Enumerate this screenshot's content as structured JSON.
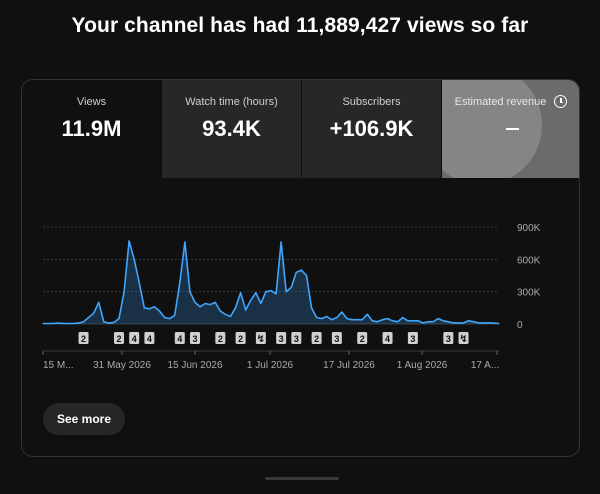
{
  "headline": "Your channel has had 11,889,427 views so far",
  "metrics": [
    {
      "label": "Views",
      "value": "11.9M"
    },
    {
      "label": "Watch time (hours)",
      "value": "93.4K"
    },
    {
      "label": "Subscribers",
      "value": "+106.9K"
    },
    {
      "label": "Estimated revenue",
      "value": ""
    }
  ],
  "see_more_label": "See more",
  "colors": {
    "line": "#3ea6ff",
    "grid": "#3a3a3a",
    "marker": "#d0d0d0"
  },
  "chart_data": {
    "type": "area",
    "series": [
      {
        "name": "Views",
        "values": [
          5000,
          5000,
          5000,
          8000,
          6000,
          5000,
          5000,
          8000,
          20000,
          60000,
          100000,
          200000,
          20000,
          8000,
          15000,
          50000,
          300000,
          770000,
          600000,
          380000,
          150000,
          140000,
          160000,
          120000,
          60000,
          50000,
          80000,
          380000,
          760000,
          300000,
          200000,
          160000,
          190000,
          180000,
          200000,
          120000,
          90000,
          70000,
          150000,
          290000,
          130000,
          220000,
          290000,
          190000,
          300000,
          310000,
          280000,
          760000,
          300000,
          340000,
          480000,
          500000,
          450000,
          150000,
          60000,
          50000,
          70000,
          40000,
          60000,
          110000,
          50000,
          40000,
          40000,
          40000,
          90000,
          30000,
          20000,
          40000,
          50000,
          30000,
          20000,
          60000,
          30000,
          30000,
          30000,
          10000,
          20000,
          20000,
          50000,
          30000,
          20000,
          10000,
          10000,
          10000,
          30000,
          20000,
          10000,
          10000,
          10000,
          8000,
          5000
        ]
      }
    ],
    "x_tick_labels": [
      "15 M...",
      "31 May 2026",
      "15 Jun 2026",
      "1 Jul 2026",
      "17 Jul 2026",
      "1 Aug 2026",
      "17 A..."
    ],
    "y_tick_labels": [
      "900K",
      "600K",
      "300K",
      "0"
    ],
    "ylim": [
      0,
      900000
    ],
    "markers": [
      {
        "index": 8,
        "label": "2"
      },
      {
        "index": 15,
        "label": "2"
      },
      {
        "index": 18,
        "label": "4"
      },
      {
        "index": 21,
        "label": "4"
      },
      {
        "index": 27,
        "label": "4"
      },
      {
        "index": 30,
        "label": "3"
      },
      {
        "index": 35,
        "label": "2"
      },
      {
        "index": 39,
        "label": "2"
      },
      {
        "index": 43,
        "label": "shorts"
      },
      {
        "index": 47,
        "label": "3"
      },
      {
        "index": 50,
        "label": "3"
      },
      {
        "index": 54,
        "label": "2"
      },
      {
        "index": 58,
        "label": "3"
      },
      {
        "index": 63,
        "label": "2"
      },
      {
        "index": 68,
        "label": "4"
      },
      {
        "index": 73,
        "label": "3"
      },
      {
        "index": 80,
        "label": "3"
      },
      {
        "index": 83,
        "label": "shorts"
      }
    ]
  }
}
